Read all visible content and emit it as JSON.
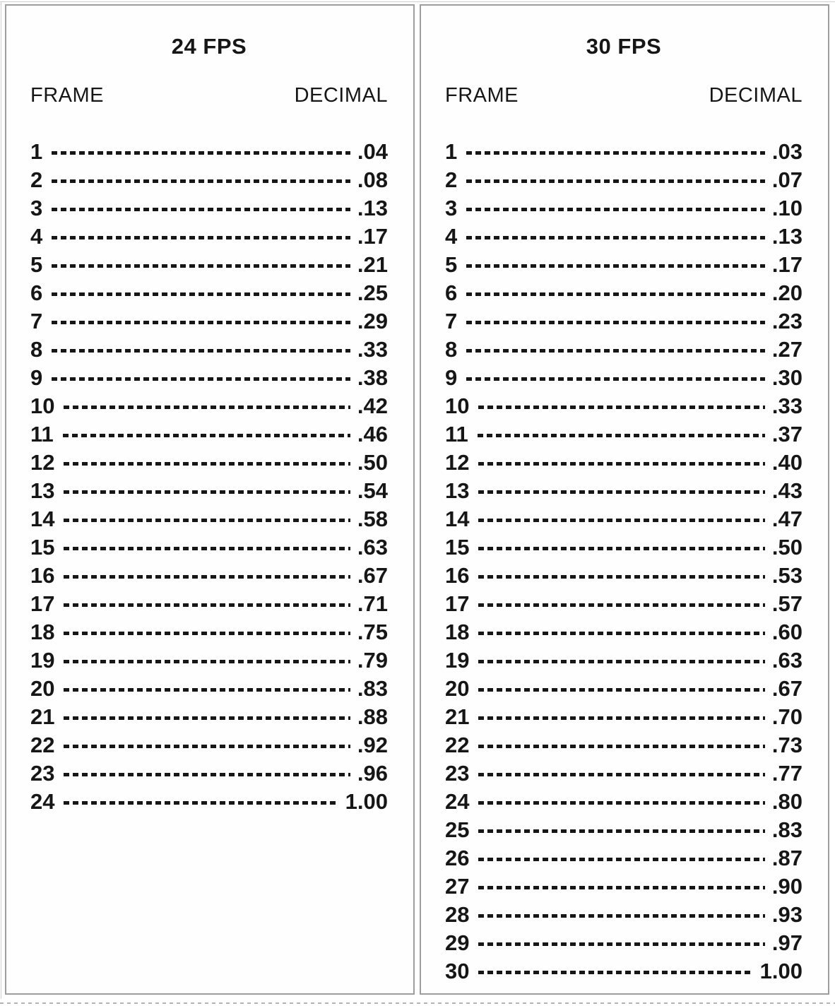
{
  "panels": [
    {
      "title": "24 FPS",
      "headers": {
        "frame": "FRAME",
        "decimal": "DECIMAL"
      },
      "rows": [
        {
          "frame": "1",
          "decimal": ".04"
        },
        {
          "frame": "2",
          "decimal": ".08"
        },
        {
          "frame": "3",
          "decimal": ".13"
        },
        {
          "frame": "4",
          "decimal": ".17"
        },
        {
          "frame": "5",
          "decimal": ".21"
        },
        {
          "frame": "6",
          "decimal": ".25"
        },
        {
          "frame": "7",
          "decimal": ".29"
        },
        {
          "frame": "8",
          "decimal": ".33"
        },
        {
          "frame": "9",
          "decimal": ".38"
        },
        {
          "frame": "10",
          "decimal": ".42"
        },
        {
          "frame": "11",
          "decimal": ".46"
        },
        {
          "frame": "12",
          "decimal": ".50"
        },
        {
          "frame": "13",
          "decimal": ".54"
        },
        {
          "frame": "14",
          "decimal": ".58"
        },
        {
          "frame": "15",
          "decimal": ".63"
        },
        {
          "frame": "16",
          "decimal": ".67"
        },
        {
          "frame": "17",
          "decimal": ".71"
        },
        {
          "frame": "18",
          "decimal": ".75"
        },
        {
          "frame": "19",
          "decimal": ".79"
        },
        {
          "frame": "20",
          "decimal": ".83"
        },
        {
          "frame": "21",
          "decimal": ".88"
        },
        {
          "frame": "22",
          "decimal": ".92"
        },
        {
          "frame": "23",
          "decimal": ".96"
        },
        {
          "frame": "24",
          "decimal": "1.00"
        }
      ]
    },
    {
      "title": "30 FPS",
      "headers": {
        "frame": "FRAME",
        "decimal": "DECIMAL"
      },
      "rows": [
        {
          "frame": "1",
          "decimal": ".03"
        },
        {
          "frame": "2",
          "decimal": ".07"
        },
        {
          "frame": "3",
          "decimal": ".10"
        },
        {
          "frame": "4",
          "decimal": ".13"
        },
        {
          "frame": "5",
          "decimal": ".17"
        },
        {
          "frame": "6",
          "decimal": ".20"
        },
        {
          "frame": "7",
          "decimal": ".23"
        },
        {
          "frame": "8",
          "decimal": ".27"
        },
        {
          "frame": "9",
          "decimal": ".30"
        },
        {
          "frame": "10",
          "decimal": ".33"
        },
        {
          "frame": "11",
          "decimal": ".37"
        },
        {
          "frame": "12",
          "decimal": ".40"
        },
        {
          "frame": "13",
          "decimal": ".43"
        },
        {
          "frame": "14",
          "decimal": ".47"
        },
        {
          "frame": "15",
          "decimal": ".50"
        },
        {
          "frame": "16",
          "decimal": ".53"
        },
        {
          "frame": "17",
          "decimal": ".57"
        },
        {
          "frame": "18",
          "decimal": ".60"
        },
        {
          "frame": "19",
          "decimal": ".63"
        },
        {
          "frame": "20",
          "decimal": ".67"
        },
        {
          "frame": "21",
          "decimal": ".70"
        },
        {
          "frame": "22",
          "decimal": ".73"
        },
        {
          "frame": "23",
          "decimal": ".77"
        },
        {
          "frame": "24",
          "decimal": ".80"
        },
        {
          "frame": "25",
          "decimal": ".83"
        },
        {
          "frame": "26",
          "decimal": ".87"
        },
        {
          "frame": "27",
          "decimal": ".90"
        },
        {
          "frame": "28",
          "decimal": ".93"
        },
        {
          "frame": "29",
          "decimal": ".97"
        },
        {
          "frame": "30",
          "decimal": "1.00"
        }
      ]
    }
  ]
}
